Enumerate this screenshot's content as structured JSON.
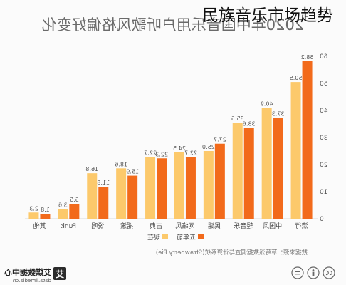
{
  "overlay_title": "民族音乐市场趋势",
  "chart_data": {
    "type": "bar",
    "title": "2020年中国音乐用户听歌风格偏好变化",
    "mirrored_horizontally": true,
    "categories": [
      "流行",
      "中国风",
      "轻音乐",
      "民谣",
      "网络风",
      "古典",
      "摇滚",
      "说唱",
      "Funk",
      "其他"
    ],
    "series": [
      {
        "key": "five-years-ago",
        "name": "五年前",
        "color": "#f26a1b",
        "values": [
          58.2,
          37.3,
          33.6,
          27.7,
          22.7,
          22.3,
          15.9,
          11.8,
          5.5,
          1.8
        ]
      },
      {
        "key": "now",
        "name": "现在",
        "color": "#fcc96b",
        "values": [
          50.5,
          40.9,
          35.5,
          25.0,
          24.5,
          22.7,
          18.6,
          16.8,
          3.6,
          2.3
        ]
      }
    ],
    "ylim": [
      0,
      60
    ],
    "yticks": [
      0,
      10,
      20,
      30,
      40,
      50,
      60
    ],
    "xlabel": "",
    "ylabel": "",
    "grid": false,
    "legend": "bottom"
  },
  "source": "数据来源：草莓派数据调查与计算系统(Strawberry Pie)",
  "logo": {
    "mark": "艾",
    "name": "艾媒数据中心",
    "url": "data.iimedia.cn"
  },
  "license_icons": [
    "cc-icon",
    "attribution-icon",
    "no-derivatives-icon"
  ]
}
